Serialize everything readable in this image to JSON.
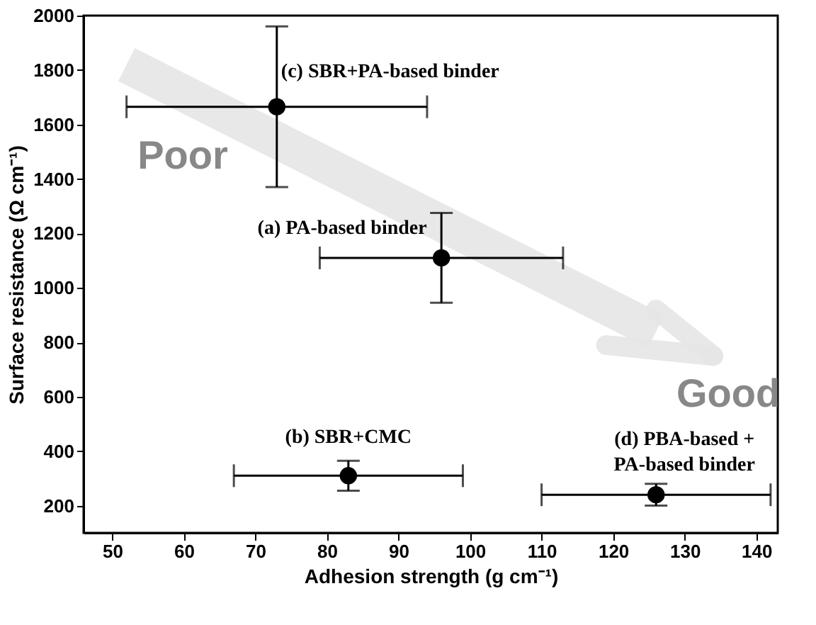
{
  "chart_data": {
    "type": "scatter",
    "xlabel": "Adhesion strength (g cm⁻¹)",
    "ylabel": "Surface resistance (Ω cm⁻¹)",
    "x": [
      73,
      96,
      83,
      126
    ],
    "values": [
      1665,
      1110,
      310,
      240
    ],
    "errors": [
      [
        1370,
        1960
      ],
      [
        945,
        1275
      ],
      [
        255,
        365
      ],
      [
        200,
        280
      ]
    ],
    "xerrors": [
      [
        52,
        94
      ],
      [
        79,
        113
      ],
      [
        67,
        99
      ],
      [
        110,
        142
      ]
    ],
    "color": "#000000",
    "marker": "circle",
    "grid": false,
    "xlim": [
      46,
      143
    ],
    "xticks": [
      50,
      60,
      70,
      80,
      90,
      100,
      110,
      120,
      130,
      140
    ],
    "ylim": [
      100,
      2000
    ],
    "yticks": [
      200,
      400,
      600,
      800,
      1000,
      1200,
      1400,
      1600,
      1800,
      2000
    ],
    "annotations": [
      "(c) SBR+PA-based binder",
      "(a) PA-based binder",
      "(b) SBR+CMC",
      "(d) PBA-based +\nPA-based binder",
      "Poor",
      "Good"
    ]
  }
}
